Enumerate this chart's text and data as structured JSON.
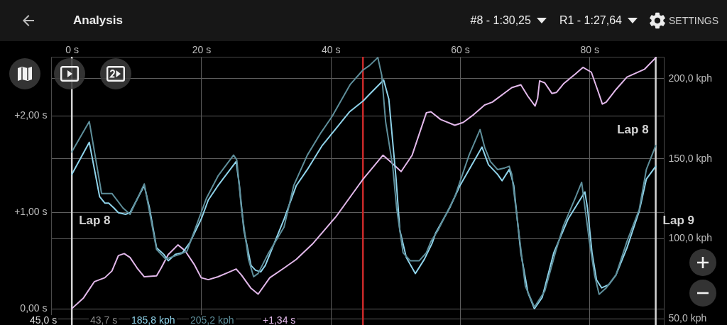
{
  "chart_data": {
    "type": "line",
    "title": "Analysis",
    "xlim": [
      -3.2,
      91.5
    ],
    "xticks": [
      {
        "value": 0,
        "label": "0 s"
      },
      {
        "value": 20,
        "label": "20 s"
      },
      {
        "value": 40,
        "label": "40 s"
      },
      {
        "value": 60,
        "label": "60 s"
      },
      {
        "value": 80,
        "label": "80 s"
      }
    ],
    "ylim": [
      -0.17,
      2.61
    ],
    "yticks": [
      {
        "value": 0,
        "label": "0,00 s"
      },
      {
        "value": 1,
        "label": "+1,00 s"
      },
      {
        "value": 2,
        "label": "+2,00 s"
      }
    ],
    "y2lim": [
      45.8,
      213.5
    ],
    "y2ticks": [
      {
        "value": 50,
        "label": "50,0 kph"
      },
      {
        "value": 100,
        "label": "100,0 kph"
      },
      {
        "value": 150,
        "label": "150,0 kph"
      },
      {
        "value": 200,
        "label": "200,0 kph"
      }
    ],
    "grid": true,
    "series": [
      {
        "color": "#e2b8ea",
        "x": [
          0,
          1.8,
          3.5,
          5.1,
          6.2,
          7.2,
          8.1,
          9.0,
          10.1,
          11.2,
          13.1,
          13.8,
          14.9,
          16.4,
          17.5,
          18.9,
          20.0,
          21.1,
          22.6,
          24.0,
          25.4,
          26.2,
          27.7,
          28.8,
          30.6,
          32.8,
          34.7,
          37.2,
          40.8,
          45.0,
          48.1,
          49.3,
          50.9,
          52.6,
          54.8,
          55.5,
          57.0,
          59.2,
          60.5,
          62.1,
          63.8,
          65.0,
          68.0,
          69.4,
          70.5,
          71.6,
          72.0,
          72.3,
          73.1,
          74.2,
          74.9,
          76.0,
          77.8,
          79.0,
          80.3,
          81.5,
          82.0,
          82.6,
          84.1,
          85.8,
          88.5,
          90.25
        ],
        "values": [
          0,
          0.11,
          0.28,
          0.32,
          0.39,
          0.55,
          0.57,
          0.53,
          0.42,
          0.33,
          0.34,
          0.42,
          0.56,
          0.66,
          0.6,
          0.46,
          0.32,
          0.3,
          0.33,
          0.37,
          0.41,
          0.35,
          0.21,
          0.15,
          0.32,
          0.42,
          0.51,
          0.67,
          0.95,
          1.34,
          1.59,
          1.52,
          1.42,
          1.59,
          2.03,
          2.04,
          1.96,
          1.9,
          1.93,
          2.01,
          2.11,
          2.14,
          2.29,
          2.32,
          2.2,
          2.1,
          2.18,
          2.36,
          2.34,
          2.23,
          2.24,
          2.33,
          2.43,
          2.5,
          2.45,
          2.22,
          2.12,
          2.14,
          2.27,
          2.4,
          2.48,
          2.6
        ]
      },
      {
        "color": "#8fd3ea",
        "axis": "y2",
        "x": [
          0,
          0.4,
          2.7,
          4.3,
          5.1,
          5.7,
          6.5,
          7.2,
          8.3,
          9.0,
          11.2,
          12.0,
          13.1,
          14.2,
          14.9,
          16.0,
          17.1,
          18.2,
          20.0,
          21.1,
          22.6,
          25.4,
          25.9,
          26.6,
          27.7,
          28.4,
          29.2,
          29.9,
          31.0,
          32.8,
          34.7,
          36.4,
          38.7,
          41.3,
          42.9,
          45.0,
          46.0,
          48.2,
          49.0,
          50.1,
          50.7,
          51.7,
          53.1,
          54.5,
          55.7,
          56.2,
          58.4,
          60.0,
          63.4,
          64.4,
          65.8,
          66.5,
          67.6,
          68.0,
          68.3,
          69.4,
          70.5,
          71.5,
          72.7,
          74.5,
          76.7,
          79.3,
          79.7,
          80.4,
          81.1,
          81.9,
          83.0,
          84.1,
          85.8,
          87.7,
          88.8,
          90.25
        ],
        "values": [
          140,
          143,
          160,
          126,
          122,
          122,
          119,
          116,
          115,
          116,
          133,
          119,
          94,
          90,
          86,
          90,
          91,
          97,
          112,
          124,
          133,
          148,
          133,
          105,
          83,
          80,
          79,
          83,
          94,
          112,
          133,
          143,
          158,
          171,
          179,
          185.8,
          190,
          199,
          187,
          138,
          105,
          88,
          78,
          87,
          97,
          103,
          119,
          133,
          157,
          146,
          140,
          136,
          143,
          138,
          133,
          91,
          66,
          56,
          63,
          91,
          112,
          129,
          119,
          91,
          74,
          69,
          71,
          77,
          94,
          117,
          137,
          145
        ]
      },
      {
        "color": "#5e8e9a",
        "axis": "y2",
        "x": [
          0,
          2.7,
          4.6,
          6.2,
          7.9,
          9.0,
          11.2,
          13.1,
          14.5,
          16.7,
          17.8,
          20.8,
          22.6,
          25.0,
          25.5,
          26.2,
          27.3,
          28.1,
          28.8,
          30.3,
          32.8,
          34.3,
          36.4,
          38.5,
          40.2,
          43.0,
          45.0,
          46.0,
          47.3,
          47.9,
          48.5,
          49.6,
          50.2,
          51.2,
          52.3,
          53.7,
          54.8,
          55.5,
          56.6,
          59.2,
          61.4,
          63.1,
          63.8,
          64.7,
          65.8,
          66.9,
          67.6,
          68.0,
          70.1,
          71.5,
          73.1,
          74.8,
          76.0,
          77.8,
          78.8,
          80.0,
          80.8,
          81.5,
          82.6,
          84.1,
          85.8,
          87.7,
          88.8,
          90.25
        ],
        "values": [
          154,
          173,
          128,
          128,
          119,
          115,
          134,
          93,
          87,
          90,
          92,
          125,
          139,
          152,
          149,
          119,
          87,
          76,
          78,
          90,
          107,
          133,
          152,
          166,
          176,
          196,
          205.2,
          208,
          213,
          202,
          173,
          145,
          119,
          91,
          86,
          86,
          91,
          98,
          105,
          126,
          152,
          168,
          157,
          148,
          143,
          144,
          145,
          140,
          70,
          57,
          67,
          92,
          108,
          125,
          135,
          98,
          77,
          65,
          69,
          77,
          98,
          118,
          143,
          158
        ]
      }
    ],
    "ref_lines": [
      {
        "axis": "x",
        "value": 0,
        "label": "Lap 8",
        "color": "#d4d4d4"
      },
      {
        "axis": "x",
        "value": 45,
        "color": "#c62828"
      },
      {
        "axis": "x",
        "value": 90.25,
        "label": "Lap 9",
        "color": "#d4d4d4"
      }
    ],
    "annotations": [
      "#8 - 1:30,25",
      "R1 - 1:27,64",
      "SETTINGS",
      "45,0 s",
      "43,7 s",
      "185,8 kph",
      "205,2 kph",
      "+1,34 s",
      {
        "text": "Lap 8",
        "x": 90.25,
        "y": 1.85
      }
    ]
  }
}
